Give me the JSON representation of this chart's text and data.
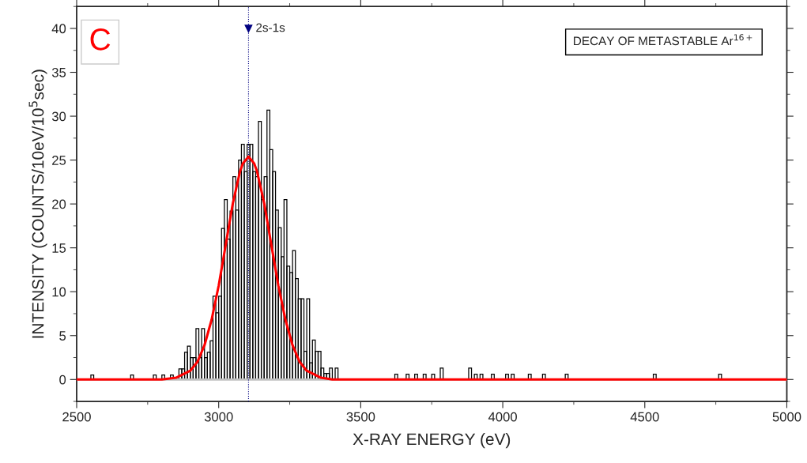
{
  "chart_data": {
    "type": "histogram",
    "xlabel": "X-RAY ENERGY (eV)",
    "ylabel": "INTENSITY (COUNTS/10eV/10$^{5}$sec)",
    "bins": [
      2500,
      2550,
      2560,
      2690,
      2700,
      2770,
      2780,
      2800,
      2810,
      2830,
      2840,
      2860,
      2870,
      2880,
      2890,
      2900,
      2910,
      2920,
      2930,
      2940,
      2950,
      2960,
      2970,
      2980,
      2990,
      3000,
      3010,
      3020,
      3030,
      3040,
      3050,
      3060,
      3070,
      3080,
      3090,
      3100,
      3110,
      3120,
      3130,
      3140,
      3150,
      3160,
      3170,
      3180,
      3190,
      3200,
      3210,
      3220,
      3230,
      3240,
      3250,
      3260,
      3270,
      3280,
      3290,
      3300,
      3310,
      3320,
      3330,
      3340,
      3350,
      3360,
      3370,
      3380,
      3390,
      3400,
      3410,
      3420,
      3620,
      3630,
      3660,
      3670,
      3690,
      3700,
      3720,
      3730,
      3750,
      3760,
      3780,
      3790,
      3880,
      3890,
      3900,
      3910,
      3920,
      3930,
      3960,
      3970,
      4010,
      4020,
      4030,
      4040,
      4090,
      4100,
      4140,
      4150,
      4220,
      4230,
      4530,
      4540,
      4760,
      4770,
      5000
    ],
    "values": [
      0,
      0.5,
      0,
      0.5,
      0,
      0.5,
      0,
      0.5,
      0,
      0.5,
      0,
      1.2,
      1.2,
      3.1,
      3.8,
      2.5,
      2.5,
      5.8,
      2.5,
      5.8,
      2.5,
      3.1,
      4.4,
      9.5,
      7.6,
      9.5,
      17.2,
      20.5,
      16.0,
      19.2,
      23.1,
      19.3,
      25.0,
      26.8,
      23.7,
      26.8,
      26.8,
      23.7,
      23.1,
      29.4,
      20.5,
      23.1,
      30.7,
      26.2,
      23.7,
      19.3,
      17.3,
      14.0,
      20.5,
      12.9,
      12.2,
      14.7,
      11.5,
      9.2,
      9.2,
      3.2,
      9.2,
      1.9,
      4.5,
      3.2,
      3.2,
      1.3,
      0.7,
      0.7,
      1.3,
      0,
      1.3,
      0,
      0.6,
      0,
      0.6,
      0,
      0.6,
      0,
      0.6,
      0,
      0.6,
      0,
      1.3,
      0,
      1.3,
      0,
      0.6,
      0,
      0.6,
      0,
      0.6,
      0,
      0.6,
      0,
      0.6,
      0,
      0.6,
      0,
      0.6,
      0,
      0.6,
      0,
      0.6,
      0,
      0.6,
      0
    ],
    "color": "#000000",
    "series": [
      {
        "type": "line",
        "color": "#ff0000",
        "x": [
          2500,
          2800,
          2850,
          2900,
          2925,
          2950,
          2975,
          3000,
          3025,
          3050,
          3075,
          3085,
          3105,
          3125,
          3135,
          3160,
          3185,
          3210,
          3235,
          3260,
          3285,
          3310,
          3360,
          3400,
          5000
        ],
        "values": [
          0,
          0,
          0.2,
          1.0,
          2.0,
          3.9,
          6.8,
          10.7,
          15.4,
          20.1,
          23.7,
          24.6,
          25.4,
          24.6,
          23.7,
          20.1,
          15.4,
          10.7,
          6.8,
          3.9,
          2.0,
          1.0,
          0.2,
          0,
          0
        ]
      }
    ],
    "xlim": [
      2500,
      5000
    ],
    "xticks": [
      2500,
      3000,
      3500,
      4000,
      4500,
      5000
    ],
    "ylim": [
      -2.5,
      42.5
    ],
    "yticks": [
      0,
      5,
      10,
      15,
      20,
      25,
      30,
      35,
      40
    ],
    "ref_lines": [
      {
        "axis": "y",
        "value": 0,
        "color": "#c0c0c0",
        "line_style": "solid"
      },
      {
        "axis": "x",
        "value": 3105,
        "label": "2s-1s",
        "color": "#000080",
        "line_style": "dotted"
      }
    ],
    "annotations": [
      "C",
      "DECAY OF METASTABLE Ar$^{16+}$"
    ],
    "grid": false,
    "legend": false
  }
}
